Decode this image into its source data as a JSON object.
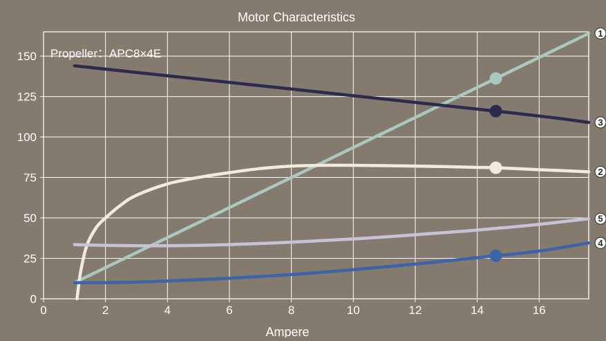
{
  "chart_data": {
    "type": "line",
    "title": "Motor Characteristics",
    "xlabel": "Ampere",
    "ylabel": "",
    "annotation": "Propeller：APC8×4E",
    "xlim": [
      0,
      17.6
    ],
    "ylim": [
      0,
      165
    ],
    "xticks": [
      0,
      2,
      4,
      6,
      8,
      10,
      12,
      14,
      16
    ],
    "yticks": [
      0,
      25,
      50,
      75,
      100,
      125,
      150
    ],
    "grid": true,
    "background_color": "#857a6e",
    "grid_color": "#ffffff",
    "highlight_x": 14.6,
    "series": [
      {
        "label": "1",
        "color": "#a9c8c0",
        "x": [
          1,
          17.6
        ],
        "y": [
          10,
          164
        ]
      },
      {
        "label": "3",
        "color": "#2d2a4f",
        "x": [
          1,
          14.6,
          17.6
        ],
        "y": [
          144,
          116,
          109
        ]
      },
      {
        "label": "2",
        "color": "#f0ebe1",
        "x": [
          1.08,
          1.2,
          1.4,
          1.7,
          2,
          2.5,
          3,
          4,
          5,
          6,
          7,
          8,
          9,
          10,
          11,
          12,
          13,
          14,
          14.6,
          16,
          17.6
        ],
        "y": [
          0,
          17,
          33,
          44,
          50,
          58,
          64,
          71,
          75,
          78,
          80.5,
          82,
          82.5,
          82.5,
          82.3,
          82,
          81.7,
          81.2,
          81,
          79.8,
          78.5
        ]
      },
      {
        "label": "5",
        "color": "#c7c3d7",
        "x": [
          1,
          2,
          3,
          4,
          5,
          6,
          7,
          8,
          9,
          10,
          11,
          12,
          13,
          14,
          15,
          16,
          17.6
        ],
        "y": [
          33.5,
          33,
          32.8,
          32.8,
          33,
          33.5,
          34.2,
          35,
          36,
          37,
          38.2,
          39.6,
          41,
          42.5,
          44.2,
          46,
          49.5
        ]
      },
      {
        "label": "4",
        "color": "#3d63a8",
        "x": [
          1,
          2,
          3,
          4,
          5,
          6,
          7,
          8,
          9,
          10,
          11,
          12,
          13,
          14,
          14.6,
          16,
          17.6
        ],
        "y": [
          10,
          10,
          10.3,
          11,
          11.8,
          12.7,
          13.8,
          15,
          16.4,
          18,
          19.7,
          21.5,
          23.4,
          25.4,
          26.6,
          29.5,
          34.5
        ]
      }
    ]
  }
}
